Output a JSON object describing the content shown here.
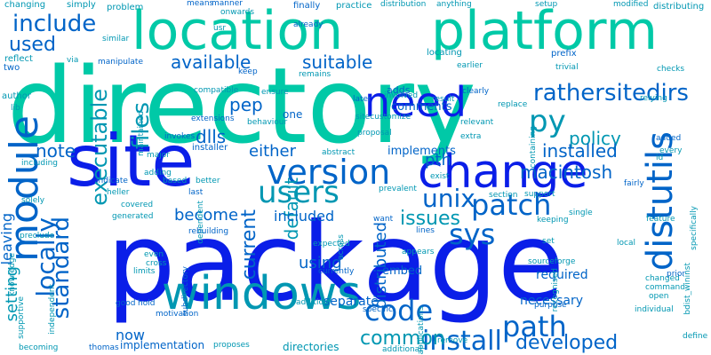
{
  "palette": {
    "blue": "#0a1ee8",
    "cyan": "#00c9a7",
    "teal": "#0097b2",
    "mid": "#0064c8"
  },
  "words": [
    {
      "text": "directory",
      "color": "#00c9a7",
      "rotate": 0
    },
    {
      "text": "package",
      "color": "#0a1ee8",
      "rotate": 0
    },
    {
      "text": "site",
      "color": "#0a1ee8",
      "rotate": 0
    },
    {
      "text": "location",
      "color": "#00c9a7",
      "rotate": 0
    },
    {
      "text": "platform",
      "color": "#00c9a7",
      "rotate": 0
    },
    {
      "text": "change",
      "color": "#0a1ee8",
      "rotate": 0
    },
    {
      "text": "windows",
      "color": "#0097b2",
      "rotate": 0
    },
    {
      "text": "module",
      "color": "#0064c8",
      "rotate": -90
    },
    {
      "text": "distutils",
      "color": "#0064c8",
      "rotate": -90
    },
    {
      "text": "version",
      "color": "#0064c8",
      "rotate": 0
    },
    {
      "text": "need",
      "color": "#0a1ee8",
      "rotate": 0
    },
    {
      "text": "users",
      "color": "#0097b2",
      "rotate": 0
    },
    {
      "text": "patch",
      "color": "#0064c8",
      "rotate": 0
    },
    {
      "text": "path",
      "color": "#0064c8",
      "rotate": 0
    },
    {
      "text": "sys",
      "color": "#0064c8",
      "rotate": 0
    },
    {
      "text": "code",
      "color": "#0064c8",
      "rotate": 0
    },
    {
      "text": "install",
      "color": "#0064c8",
      "rotate": 0
    },
    {
      "text": "unix",
      "color": "#0064c8",
      "rotate": 0
    },
    {
      "text": "include",
      "color": "#0064c8",
      "rotate": 0
    },
    {
      "text": "rather",
      "color": "#0064c8",
      "rotate": 0
    },
    {
      "text": "sitedirs",
      "color": "#0064c8",
      "rotate": 0
    },
    {
      "text": "py",
      "color": "#0097b2",
      "rotate": 0
    },
    {
      "text": "locally",
      "color": "#0064c8",
      "rotate": -90
    },
    {
      "text": "standard",
      "color": "#0064c8",
      "rotate": -90
    },
    {
      "text": "files",
      "color": "#0097b2",
      "rotate": -90
    },
    {
      "text": "executable",
      "color": "#0097b2",
      "rotate": -90
    },
    {
      "text": "issues",
      "color": "#0097b2",
      "rotate": 0
    },
    {
      "text": "common",
      "color": "#0097b2",
      "rotate": 0
    },
    {
      "text": "developed",
      "color": "#0064c8",
      "rotate": 0
    },
    {
      "text": "used",
      "color": "#0064c8",
      "rotate": 0
    },
    {
      "text": "available",
      "color": "#0064c8",
      "rotate": 0
    },
    {
      "text": "suitable",
      "color": "#0064c8",
      "rotate": 0
    },
    {
      "text": "pep",
      "color": "#0064c8",
      "rotate": 0
    },
    {
      "text": "dlls",
      "color": "#0064c8",
      "rotate": 0
    },
    {
      "text": "note",
      "color": "#0064c8",
      "rotate": 0
    },
    {
      "text": "policy",
      "color": "#0097b2",
      "rotate": 0
    },
    {
      "text": "pth",
      "color": "#0064c8",
      "rotate": 0
    },
    {
      "text": "installed",
      "color": "#0064c8",
      "rotate": 0
    },
    {
      "text": "macintosh",
      "color": "#0064c8",
      "rotate": 0
    },
    {
      "text": "either",
      "color": "#0064c8",
      "rotate": 0
    },
    {
      "text": "current",
      "color": "#0064c8",
      "rotate": -90
    },
    {
      "text": "default",
      "color": "#0097b2",
      "rotate": -90
    },
    {
      "text": "become",
      "color": "#0064c8",
      "rotate": 0
    },
    {
      "text": "included",
      "color": "#0064c8",
      "rotate": 0
    },
    {
      "text": "using",
      "color": "#0064c8",
      "rotate": 0
    },
    {
      "text": "distributed",
      "color": "#0064c8",
      "rotate": -90
    },
    {
      "text": "setting",
      "color": "#0097b2",
      "rotate": -90
    },
    {
      "text": "leaving",
      "color": "#0064c8",
      "rotate": -90
    },
    {
      "text": "now",
      "color": "#0064c8",
      "rotate": 0
    },
    {
      "text": "separate",
      "color": "#0064c8",
      "rotate": 0
    },
    {
      "text": "necessary",
      "color": "#0064c8",
      "rotate": 0
    },
    {
      "text": "required",
      "color": "#0064c8",
      "rotate": 0
    },
    {
      "text": "embed",
      "color": "#0064c8",
      "rotate": 0
    },
    {
      "text": "comments",
      "color": "#0064c8",
      "rotate": 0
    },
    {
      "text": "implements",
      "color": "#0064c8",
      "rotate": 0
    },
    {
      "text": "implementation",
      "color": "#0064c8",
      "rotate": 0
    },
    {
      "text": "directories",
      "color": "#0097b2",
      "rotate": 0
    },
    {
      "text": "changing",
      "color": "#0097b2",
      "rotate": 0
    },
    {
      "text": "simply",
      "color": "#0097b2",
      "rotate": 0
    },
    {
      "text": "problem",
      "color": "#0097b2",
      "rotate": 0
    },
    {
      "text": "means",
      "color": "#0064c8",
      "rotate": 0
    },
    {
      "text": "manner",
      "color": "#0064c8",
      "rotate": 0
    },
    {
      "text": "onwards",
      "color": "#0097b2",
      "rotate": 0
    },
    {
      "text": "finally",
      "color": "#0064c8",
      "rotate": 0
    },
    {
      "text": "practice",
      "color": "#0097b2",
      "rotate": 0
    },
    {
      "text": "distribution",
      "color": "#0097b2",
      "rotate": 0
    },
    {
      "text": "anything",
      "color": "#0097b2",
      "rotate": 0
    },
    {
      "text": "setup",
      "color": "#0097b2",
      "rotate": 0
    },
    {
      "text": "modified",
      "color": "#0097b2",
      "rotate": 0
    },
    {
      "text": "distributing",
      "color": "#0097b2",
      "rotate": 0
    },
    {
      "text": "similar",
      "color": "#0097b2",
      "rotate": 0
    },
    {
      "text": "already",
      "color": "#0064c8",
      "rotate": 0
    },
    {
      "text": "usr",
      "color": "#0097b2",
      "rotate": 0
    },
    {
      "text": "prefix",
      "color": "#0064c8",
      "rotate": 0
    },
    {
      "text": "locating",
      "color": "#0097b2",
      "rotate": 0
    },
    {
      "text": "earlier",
      "color": "#0097b2",
      "rotate": 0
    },
    {
      "text": "manipulate",
      "color": "#0064c8",
      "rotate": 0
    },
    {
      "text": "reflect",
      "color": "#0097b2",
      "rotate": 0
    },
    {
      "text": "via",
      "color": "#0097b2",
      "rotate": 0
    },
    {
      "text": "keep",
      "color": "#0064c8",
      "rotate": 0
    },
    {
      "text": "two",
      "color": "#0064c8",
      "rotate": 0
    },
    {
      "text": "remains",
      "color": "#0097b2",
      "rotate": 0
    },
    {
      "text": "involved",
      "color": "#0097b2",
      "rotate": 0
    },
    {
      "text": "later",
      "color": "#0064c8",
      "rotate": 0
    },
    {
      "text": "result",
      "color": "#0097b2",
      "rotate": 0
    },
    {
      "text": "clearly",
      "color": "#0064c8",
      "rotate": 0
    },
    {
      "text": "adds",
      "color": "#0064c8",
      "rotate": 0
    },
    {
      "text": "trivial",
      "color": "#0097b2",
      "rotate": 0
    },
    {
      "text": "checks",
      "color": "#0097b2",
      "rotate": 0
    },
    {
      "text": "author",
      "color": "#0097b2",
      "rotate": 0
    },
    {
      "text": "lib",
      "color": "#0097b2",
      "rotate": 0
    },
    {
      "text": "compatible",
      "color": "#0097b2",
      "rotate": 0
    },
    {
      "text": "ensure",
      "color": "#0097b2",
      "rotate": 0
    },
    {
      "text": "replace",
      "color": "#0097b2",
      "rotate": 0
    },
    {
      "text": "relying",
      "color": "#0097b2",
      "rotate": 0
    },
    {
      "text": "maintained",
      "color": "#0097b2",
      "rotate": -90
    },
    {
      "text": "extensions",
      "color": "#0064c8",
      "rotate": 0
    },
    {
      "text": "one",
      "color": "#0064c8",
      "rotate": 0
    },
    {
      "text": "behaviour",
      "color": "#0097b2",
      "rotate": 0
    },
    {
      "text": "sitecustomize",
      "color": "#0097b2",
      "rotate": 0
    },
    {
      "text": "relevant",
      "color": "#0097b2",
      "rotate": 0
    },
    {
      "text": "proposal",
      "color": "#0097b2",
      "rotate": 0
    },
    {
      "text": "containing",
      "color": "#0097b2",
      "rotate": -90
    },
    {
      "text": "invokes",
      "color": "#0064c8",
      "rotate": 0
    },
    {
      "text": "extra",
      "color": "#0097b2",
      "rotate": 0
    },
    {
      "text": "added",
      "color": "#0064c8",
      "rotate": 0
    },
    {
      "text": "every",
      "color": "#0097b2",
      "rotate": 0
    },
    {
      "text": "installer",
      "color": "#0064c8",
      "rotate": 0
    },
    {
      "text": "abstract",
      "color": "#0097b2",
      "rotate": 0
    },
    {
      "text": "major",
      "color": "#0097b2",
      "rotate": 0
    },
    {
      "text": "including",
      "color": "#0097b2",
      "rotate": 0
    },
    {
      "text": "id",
      "color": "#0097b2",
      "rotate": 0
    },
    {
      "text": "adding",
      "color": "#0097b2",
      "rotate": 0
    },
    {
      "text": "based",
      "color": "#0097b2",
      "rotate": 0
    },
    {
      "text": "better",
      "color": "#0097b2",
      "rotate": 0
    },
    {
      "text": "dependent",
      "color": "#0097b2",
      "rotate": -90
    },
    {
      "text": "exist",
      "color": "#0097b2",
      "rotate": 0
    },
    {
      "text": "indicate",
      "color": "#0064c8",
      "rotate": 0
    },
    {
      "text": "heller",
      "color": "#0097b2",
      "rotate": 0
    },
    {
      "text": "last",
      "color": "#0064c8",
      "rotate": 0
    },
    {
      "text": "prevalent",
      "color": "#0097b2",
      "rotate": 0
    },
    {
      "text": "section",
      "color": "#0097b2",
      "rotate": 0
    },
    {
      "text": "support",
      "color": "#0097b2",
      "rotate": 0
    },
    {
      "text": "fairly",
      "color": "#0064c8",
      "rotate": 0
    },
    {
      "text": "solely",
      "color": "#0097b2",
      "rotate": 0
    },
    {
      "text": "covered",
      "color": "#0097b2",
      "rotate": 0
    },
    {
      "text": "want",
      "color": "#0064c8",
      "rotate": 0
    },
    {
      "text": "single",
      "color": "#0097b2",
      "rotate": 0
    },
    {
      "text": "keeping",
      "color": "#0097b2",
      "rotate": 0
    },
    {
      "text": "feature",
      "color": "#0097b2",
      "rotate": 0
    },
    {
      "text": "specifically",
      "color": "#0097b2",
      "rotate": -90
    },
    {
      "text": "generated",
      "color": "#0097b2",
      "rotate": 0
    },
    {
      "text": "lines",
      "color": "#0064c8",
      "rotate": 0
    },
    {
      "text": "preclude",
      "color": "#0097b2",
      "rotate": 0
    },
    {
      "text": "rebuilding",
      "color": "#0064c8",
      "rotate": 0
    },
    {
      "text": "expected",
      "color": "#0097b2",
      "rotate": 0
    },
    {
      "text": "set",
      "color": "#0097b2",
      "rotate": 0
    },
    {
      "text": "local",
      "color": "#0097b2",
      "rotate": 0
    },
    {
      "text": "recognised",
      "color": "#0097b2",
      "rotate": -90
    },
    {
      "text": "knowledge",
      "color": "#0097b2",
      "rotate": -90
    },
    {
      "text": "even",
      "color": "#0097b2",
      "rotate": 0
    },
    {
      "text": "cross",
      "color": "#0097b2",
      "rotate": 0
    },
    {
      "text": "limits",
      "color": "#0097b2",
      "rotate": 0
    },
    {
      "text": "appears",
      "color": "#0097b2",
      "rotate": 0
    },
    {
      "text": "currently",
      "color": "#0064c8",
      "rotate": 0
    },
    {
      "text": "across",
      "color": "#0097b2",
      "rotate": -90
    },
    {
      "text": "sourceforge",
      "color": "#0097b2",
      "rotate": 0
    },
    {
      "text": "changed",
      "color": "#0097b2",
      "rotate": 0
    },
    {
      "text": "command",
      "color": "#0097b2",
      "rotate": 0
    },
    {
      "text": "prior",
      "color": "#0064c8",
      "rotate": 0
    },
    {
      "text": "bdist_wininst",
      "color": "#0097b2",
      "rotate": -90
    },
    {
      "text": "subdirectory",
      "color": "#0064c8",
      "rotate": -90
    },
    {
      "text": "supportive",
      "color": "#0097b2",
      "rotate": -90
    },
    {
      "text": "independent",
      "color": "#0097b2",
      "rotate": -90
    },
    {
      "text": "good",
      "color": "#0064c8",
      "rotate": 0
    },
    {
      "text": "hold",
      "color": "#0064c8",
      "rotate": 0
    },
    {
      "text": "motivation",
      "color": "#0064c8",
      "rotate": 0
    },
    {
      "text": "addition",
      "color": "#0097b2",
      "rotate": 0
    },
    {
      "text": "applications",
      "color": "#0097b2",
      "rotate": -90
    },
    {
      "text": "specific",
      "color": "#0064c8",
      "rotate": 0
    },
    {
      "text": "purpose",
      "color": "#0064c8",
      "rotate": 0
    },
    {
      "text": "open",
      "color": "#0097b2",
      "rotate": 0
    },
    {
      "text": "individual",
      "color": "#0097b2",
      "rotate": 0
    },
    {
      "text": "define",
      "color": "#0097b2",
      "rotate": 0
    },
    {
      "text": "becoming",
      "color": "#0097b2",
      "rotate": 0
    },
    {
      "text": "thomas",
      "color": "#0064c8",
      "rotate": 0
    },
    {
      "text": "proposes",
      "color": "#0097b2",
      "rotate": 0
    },
    {
      "text": "additional",
      "color": "#0097b2",
      "rotate": 0
    },
    {
      "text": "remove",
      "color": "#0097b2",
      "rotate": 0
    }
  ]
}
